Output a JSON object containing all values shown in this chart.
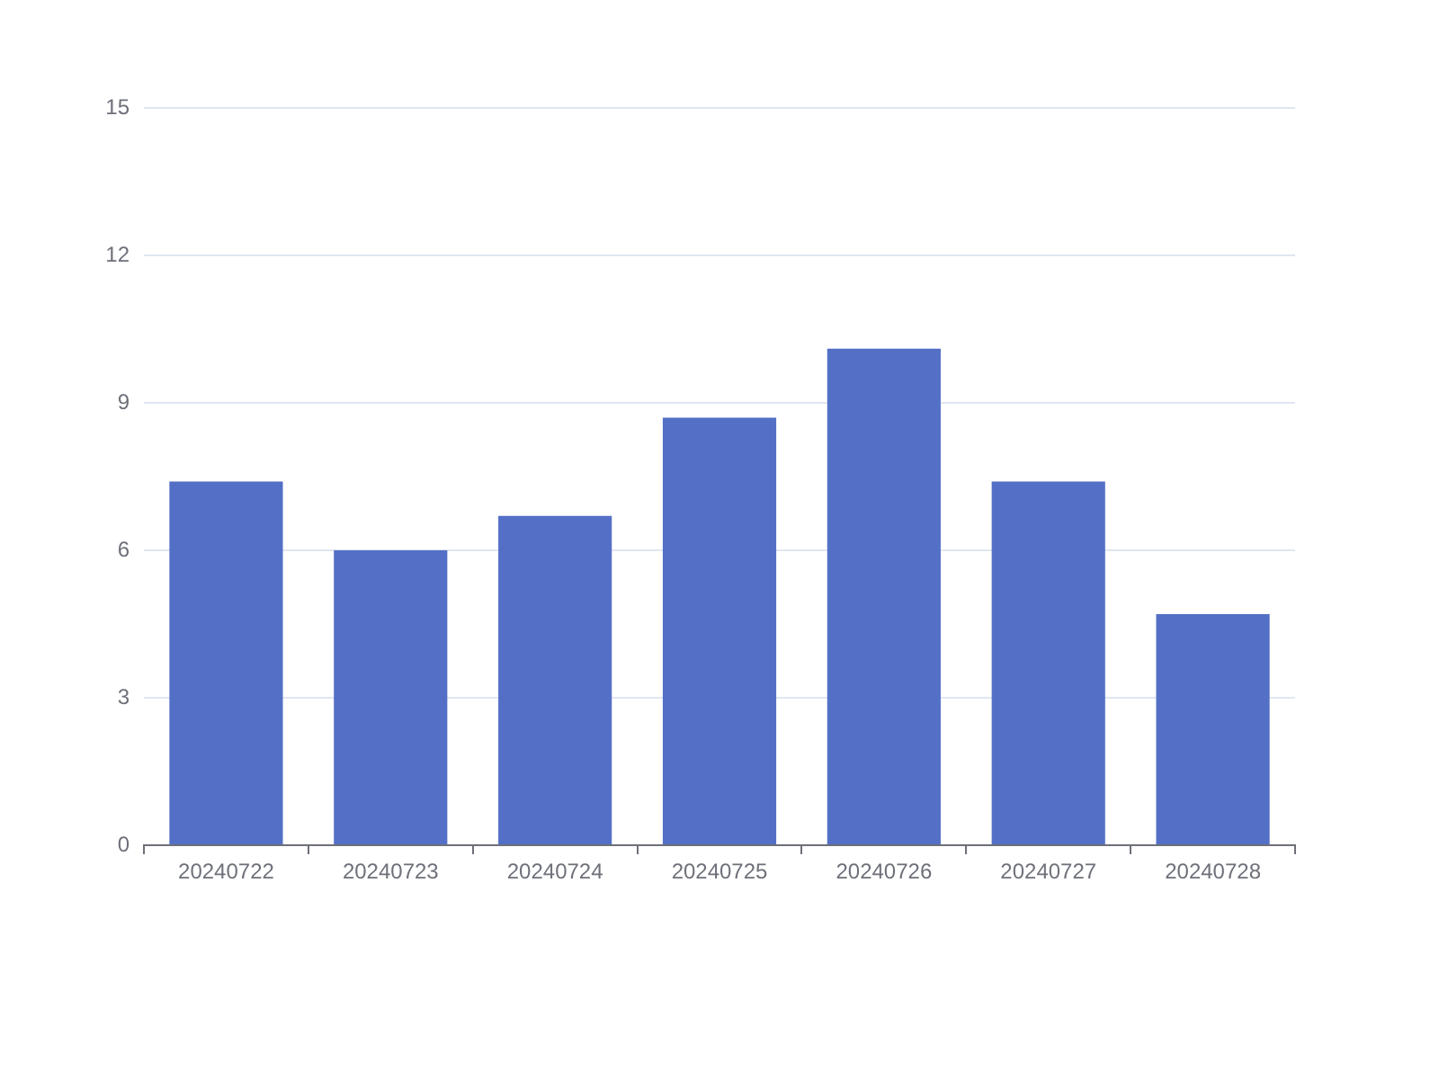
{
  "chart_data": {
    "type": "bar",
    "categories": [
      "20240722",
      "20240723",
      "20240724",
      "20240725",
      "20240726",
      "20240727",
      "20240728"
    ],
    "values": [
      7.4,
      6.0,
      6.7,
      8.7,
      10.1,
      7.4,
      4.7
    ],
    "color": "#5470c6",
    "ylim": [
      0,
      15
    ],
    "yticks": [
      0,
      3,
      6,
      9,
      12,
      15
    ],
    "grid": "y"
  }
}
